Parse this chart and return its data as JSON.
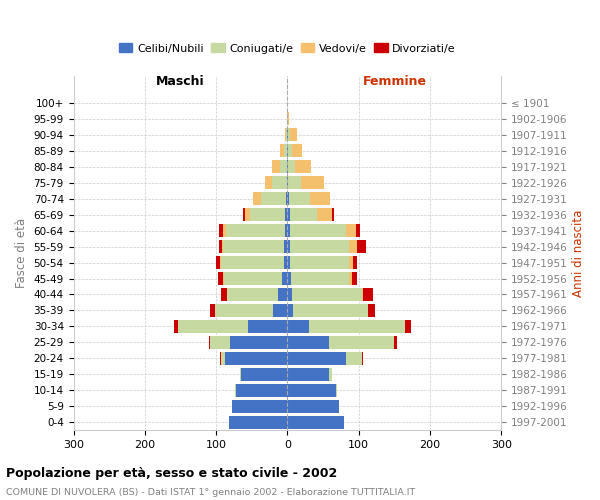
{
  "age_groups": [
    "0-4",
    "5-9",
    "10-14",
    "15-19",
    "20-24",
    "25-29",
    "30-34",
    "35-39",
    "40-44",
    "45-49",
    "50-54",
    "55-59",
    "60-64",
    "65-69",
    "70-74",
    "75-79",
    "80-84",
    "85-89",
    "90-94",
    "95-99",
    "100+"
  ],
  "birth_years": [
    "1997-2001",
    "1992-1996",
    "1987-1991",
    "1982-1986",
    "1977-1981",
    "1972-1976",
    "1967-1971",
    "1962-1966",
    "1957-1961",
    "1952-1956",
    "1947-1951",
    "1942-1946",
    "1937-1941",
    "1932-1936",
    "1927-1931",
    "1922-1926",
    "1917-1921",
    "1912-1916",
    "1907-1911",
    "1902-1906",
    "≤ 1901"
  ],
  "males_celibi": [
    82,
    78,
    72,
    65,
    88,
    80,
    55,
    20,
    13,
    7,
    5,
    5,
    4,
    3,
    2,
    1,
    1,
    1,
    0,
    0,
    0
  ],
  "males_coniugati": [
    0,
    0,
    2,
    1,
    5,
    28,
    98,
    82,
    72,
    82,
    88,
    85,
    82,
    50,
    35,
    20,
    10,
    4,
    2,
    0,
    0
  ],
  "males_vedovi": [
    0,
    0,
    0,
    0,
    0,
    0,
    0,
    0,
    0,
    1,
    1,
    2,
    5,
    7,
    12,
    10,
    10,
    5,
    2,
    0,
    0
  ],
  "males_divorziati": [
    0,
    0,
    0,
    0,
    1,
    2,
    6,
    6,
    8,
    7,
    6,
    4,
    5,
    2,
    0,
    0,
    0,
    0,
    0,
    0,
    0
  ],
  "females_nubili": [
    80,
    72,
    68,
    58,
    82,
    58,
    30,
    8,
    6,
    5,
    4,
    4,
    4,
    3,
    2,
    1,
    1,
    1,
    1,
    0,
    0
  ],
  "females_coniugate": [
    0,
    0,
    2,
    5,
    22,
    92,
    135,
    105,
    98,
    82,
    82,
    82,
    78,
    38,
    30,
    18,
    10,
    5,
    2,
    0,
    0
  ],
  "females_vedove": [
    0,
    0,
    0,
    0,
    0,
    0,
    0,
    0,
    2,
    4,
    6,
    12,
    14,
    22,
    28,
    32,
    22,
    15,
    10,
    2,
    0
  ],
  "females_divorziate": [
    0,
    0,
    0,
    0,
    2,
    3,
    8,
    10,
    14,
    6,
    6,
    12,
    6,
    2,
    0,
    0,
    0,
    0,
    0,
    0,
    0
  ],
  "color_celibi": "#4472c4",
  "color_coniugati": "#c5d9a0",
  "color_vedovi": "#f5c06e",
  "color_divorziati": "#cc0000",
  "title": "Popolazione per età, sesso e stato civile - 2002",
  "subtitle": "COMUNE DI NUVOLERA (BS) - Dati ISTAT 1° gennaio 2002 - Elaborazione TUTTITALIA.IT",
  "legend_labels": [
    "Celibi/Nubili",
    "Coniugati/e",
    "Vedovi/e",
    "Divorziati/e"
  ],
  "xlim": 300,
  "ylabel_left": "Fasce di età",
  "ylabel_right": "Anni di nascita",
  "label_maschi": "Maschi",
  "label_femmine": "Femmine",
  "background_color": "#ffffff"
}
